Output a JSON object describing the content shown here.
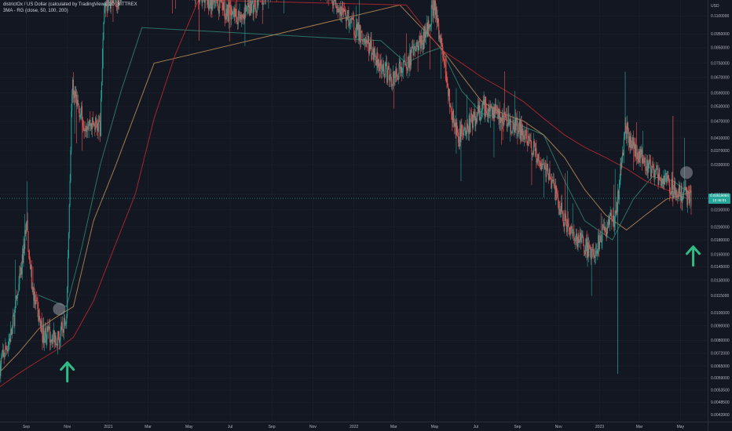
{
  "header": {
    "title": "districtOx / US Dollar (calculated by TradingView), 1D, BITTREX",
    "indicator": "3MA - RG (close, 50, 100, 200)"
  },
  "colors": {
    "background": "#131722",
    "grid": "#1e222d",
    "up": "#26a69a",
    "down": "#ef5350",
    "ma50": "#2e7d6b",
    "ma100": "#b08552",
    "ma200": "#b3262e",
    "arrow": "#2ebd85",
    "marker": "#9598a1"
  },
  "price_tag": {
    "value": "0.02519084",
    "countdown": "12:46:01"
  },
  "chart_data": {
    "type": "candlestick",
    "title": "districtOx / US Dollar (calculated by TradingView), 1D, BITTREX",
    "y_scale": "log",
    "ylim": [
      0.00415,
      0.125
    ],
    "y_ticks": [
      "0.1100000",
      "0.0950000",
      "0.0850000",
      "0.0750000",
      "0.0670000",
      "0.0590000",
      "0.0530000",
      "0.0470000",
      "0.0410000",
      "0.0370000",
      "0.0330000",
      "0.0260000",
      "0.0230000",
      "0.0200000",
      "0.0180000",
      "0.0160000",
      "0.0145000",
      "0.0130000",
      "0.0115000",
      "0.0100000",
      "0.0090000",
      "0.0080000",
      "0.0072000",
      "0.0065000",
      "0.0059000",
      "0.0053500",
      "0.0048500",
      "0.0043900"
    ],
    "y_axis_unit": "USD",
    "x_ticks": [
      "Sep",
      "Nov",
      "2021",
      "Mar",
      "May",
      "Jul",
      "Sep",
      "Nov",
      "2022",
      "Mar",
      "May",
      "Jul",
      "Sep",
      "Nov",
      "2023",
      "Mar",
      "May"
    ],
    "x_range": [
      "2020-07-24",
      "2023-05-17"
    ],
    "last_price": 0.02519084,
    "price_path": [
      [
        "2020-07-24",
        0.0065
      ],
      [
        "2020-08-10",
        0.0085
      ],
      [
        "2020-08-25",
        0.014
      ],
      [
        "2020-09-01",
        0.021
      ],
      [
        "2020-09-10",
        0.012
      ],
      [
        "2020-09-25",
        0.0085
      ],
      [
        "2020-10-10",
        0.0083
      ],
      [
        "2020-10-20",
        0.0082
      ],
      [
        "2020-10-31",
        0.0096
      ],
      [
        "2020-11-08",
        0.062
      ],
      [
        "2020-11-25",
        0.047
      ],
      [
        "2020-12-20",
        0.045
      ],
      [
        "2020-12-26",
        0.12
      ],
      [
        "2021-01-20",
        0.13
      ],
      [
        "2021-03-01",
        0.2
      ],
      [
        "2021-05-15",
        0.13
      ],
      [
        "2021-06-20",
        0.115
      ],
      [
        "2021-07-20",
        0.11
      ],
      [
        "2021-09-20",
        0.15
      ],
      [
        "2021-11-20",
        0.14
      ],
      [
        "2021-12-20",
        0.11
      ],
      [
        "2022-01-25",
        0.085
      ],
      [
        "2022-02-25",
        0.066
      ],
      [
        "2022-03-20",
        0.075
      ],
      [
        "2022-04-15",
        0.092
      ],
      [
        "2022-04-30",
        0.12
      ],
      [
        "2022-05-12",
        0.084
      ],
      [
        "2022-05-25",
        0.05
      ],
      [
        "2022-06-05",
        0.041
      ],
      [
        "2022-06-25",
        0.047
      ],
      [
        "2022-07-15",
        0.053
      ],
      [
        "2022-08-05",
        0.049
      ],
      [
        "2022-09-01",
        0.045
      ],
      [
        "2022-09-30",
        0.036
      ],
      [
        "2022-10-20",
        0.03
      ],
      [
        "2022-11-10",
        0.021
      ],
      [
        "2022-12-01",
        0.018
      ],
      [
        "2022-12-20",
        0.016
      ],
      [
        "2023-01-05",
        0.019
      ],
      [
        "2023-01-25",
        0.022
      ],
      [
        "2023-02-08",
        0.045
      ],
      [
        "2023-02-20",
        0.038
      ],
      [
        "2023-03-10",
        0.033
      ],
      [
        "2023-04-01",
        0.03
      ],
      [
        "2023-04-20",
        0.027
      ],
      [
        "2023-05-03",
        0.026
      ],
      [
        "2023-05-17",
        0.0252
      ]
    ],
    "series": [
      {
        "name": "MA 50",
        "points": [
          [
            "2020-09-20",
            0.0115
          ],
          [
            "2020-10-10",
            0.011
          ],
          [
            "2020-10-31",
            0.0105
          ],
          [
            "2020-11-20",
            0.016
          ],
          [
            "2020-12-20",
            0.033
          ],
          [
            "2021-01-20",
            0.06
          ],
          [
            "2021-02-20",
            0.1
          ],
          [
            "2022-02-10",
            0.09
          ],
          [
            "2022-03-20",
            0.075
          ],
          [
            "2022-04-20",
            0.082
          ],
          [
            "2022-05-10",
            0.085
          ],
          [
            "2022-06-10",
            0.06
          ],
          [
            "2022-07-10",
            0.05
          ],
          [
            "2022-08-10",
            0.048
          ],
          [
            "2022-09-10",
            0.045
          ],
          [
            "2022-10-10",
            0.042
          ],
          [
            "2022-11-10",
            0.029
          ],
          [
            "2022-12-10",
            0.021
          ],
          [
            "2023-01-20",
            0.018
          ],
          [
            "2023-02-20",
            0.025
          ],
          [
            "2023-03-20",
            0.03
          ],
          [
            "2023-04-20",
            0.029
          ],
          [
            "2023-05-17",
            0.026
          ]
        ]
      },
      {
        "name": "MA 100",
        "points": [
          [
            "2020-07-24",
            0.0062
          ],
          [
            "2020-08-20",
            0.0072
          ],
          [
            "2020-09-20",
            0.0088
          ],
          [
            "2020-10-20",
            0.0098
          ],
          [
            "2020-11-10",
            0.0105
          ],
          [
            "2020-12-10",
            0.021
          ],
          [
            "2021-01-10",
            0.032
          ],
          [
            "2021-02-10",
            0.05
          ],
          [
            "2021-03-10",
            0.075
          ],
          [
            "2022-03-10",
            0.12
          ],
          [
            "2022-05-10",
            0.085
          ],
          [
            "2022-06-10",
            0.068
          ],
          [
            "2022-07-10",
            0.055
          ],
          [
            "2022-08-10",
            0.05
          ],
          [
            "2022-09-10",
            0.047
          ],
          [
            "2022-10-10",
            0.042
          ],
          [
            "2022-11-10",
            0.035
          ],
          [
            "2022-12-10",
            0.027
          ],
          [
            "2023-01-10",
            0.022
          ],
          [
            "2023-02-10",
            0.0195
          ],
          [
            "2023-03-10",
            0.022
          ],
          [
            "2023-04-10",
            0.025
          ],
          [
            "2023-05-17",
            0.0265
          ]
        ]
      },
      {
        "name": "MA 200",
        "points": [
          [
            "2020-07-24",
            0.0055
          ],
          [
            "2020-08-20",
            0.0061
          ],
          [
            "2020-09-20",
            0.0068
          ],
          [
            "2020-10-20",
            0.0075
          ],
          [
            "2020-11-10",
            0.0082
          ],
          [
            "2020-12-10",
            0.011
          ],
          [
            "2021-01-10",
            0.017
          ],
          [
            "2021-02-10",
            0.026
          ],
          [
            "2021-03-10",
            0.048
          ],
          [
            "2021-04-10",
            0.08
          ],
          [
            "2021-05-15",
            0.125
          ],
          [
            "2022-03-20",
            0.12
          ],
          [
            "2022-05-10",
            0.084
          ],
          [
            "2022-06-10",
            0.075
          ],
          [
            "2022-07-10",
            0.067
          ],
          [
            "2022-08-10",
            0.061
          ],
          [
            "2022-09-10",
            0.055
          ],
          [
            "2022-10-10",
            0.048
          ],
          [
            "2022-11-10",
            0.042
          ],
          [
            "2022-12-10",
            0.038
          ],
          [
            "2023-01-10",
            0.035
          ],
          [
            "2023-02-10",
            0.032
          ],
          [
            "2023-03-10",
            0.029
          ],
          [
            "2023-04-10",
            0.027
          ],
          [
            "2023-05-17",
            0.0248
          ]
        ]
      }
    ],
    "annotations": [
      {
        "type": "circle",
        "date": "2020-10-20",
        "price": 0.0103
      },
      {
        "type": "circle",
        "date": "2023-05-10",
        "price": 0.031
      },
      {
        "type": "arrow-up",
        "date": "2020-11-01",
        "price": 0.0062
      },
      {
        "type": "arrow-up",
        "date": "2023-05-20",
        "price": 0.0158
      }
    ]
  }
}
